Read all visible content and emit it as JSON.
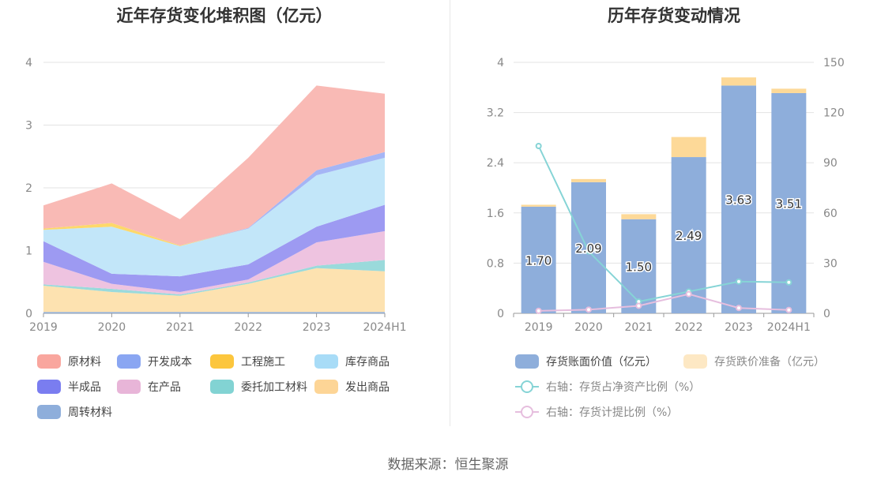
{
  "source_text": "数据来源：恒生聚源",
  "chart_data": [
    {
      "type": "area",
      "title": "近年存货变化堆积图（亿元）",
      "x": [
        "2019",
        "2020",
        "2021",
        "2022",
        "2023",
        "2024H1"
      ],
      "yticks": [
        "0",
        "1",
        "2",
        "3",
        "4"
      ],
      "ylim": [
        0,
        4
      ],
      "grid": true,
      "legend_position": "bottom",
      "series": [
        {
          "name": "周转材料",
          "color": "#8eaedb",
          "values": [
            0.02,
            0.02,
            0.02,
            0.02,
            0.02,
            0.02
          ]
        },
        {
          "name": "发出商品",
          "color": "#fde2b0",
          "values": [
            0.42,
            0.32,
            0.26,
            0.45,
            0.7,
            0.65
          ]
        },
        {
          "name": "委托加工材料",
          "color": "#9adadb",
          "values": [
            0.02,
            0.05,
            0.02,
            0.02,
            0.04,
            0.18
          ]
        },
        {
          "name": "在产品",
          "color": "#eec3e0",
          "values": [
            0.36,
            0.08,
            0.04,
            0.05,
            0.37,
            0.46
          ]
        },
        {
          "name": "半成品",
          "color": "#9d9af2",
          "values": [
            0.33,
            0.16,
            0.25,
            0.24,
            0.25,
            0.42
          ]
        },
        {
          "name": "库存商品",
          "color": "#c2e6f9",
          "values": [
            0.18,
            0.75,
            0.48,
            0.57,
            0.82,
            0.75
          ]
        },
        {
          "name": "工程施工",
          "color": "#fdd86a",
          "values": [
            0.02,
            0.06,
            0.01,
            0.0,
            0.0,
            0.0
          ]
        },
        {
          "name": "开发成本",
          "color": "#a5b5f5",
          "values": [
            0.0,
            0.0,
            0.0,
            0.01,
            0.08,
            0.09
          ]
        },
        {
          "name": "原材料",
          "color": "#f9bab5",
          "values": [
            0.37,
            0.63,
            0.42,
            1.12,
            1.35,
            0.93
          ]
        }
      ],
      "legend": [
        {
          "name": "原材料",
          "color": "#f9a69e"
        },
        {
          "name": "开发成本",
          "color": "#8aa6f2"
        },
        {
          "name": "工程施工",
          "color": "#fcc63d"
        },
        {
          "name": "库存商品",
          "color": "#a8dcf7"
        },
        {
          "name": "半成品",
          "color": "#7a7df0"
        },
        {
          "name": "在产品",
          "color": "#e8b5d8"
        },
        {
          "name": "委托加工材料",
          "color": "#82d3d3"
        },
        {
          "name": "发出商品",
          "color": "#fdd596"
        },
        {
          "name": "周转材料",
          "color": "#8eaedb"
        }
      ]
    },
    {
      "type": "bar",
      "title": "历年存货变动情况",
      "categories": [
        "2019",
        "2020",
        "2021",
        "2022",
        "2023",
        "2024H1"
      ],
      "yticks_left": [
        "0",
        "0.8",
        "1.6",
        "2.4",
        "3.2",
        "4"
      ],
      "yticks_right": [
        "0",
        "30",
        "60",
        "90",
        "120",
        "150"
      ],
      "ylim_left": [
        0,
        4
      ],
      "ylim_right": [
        0,
        150
      ],
      "grid": true,
      "legend_position": "bottom",
      "bar_series": [
        {
          "name": "存货账面价值（亿元）",
          "color": "#8eaedb",
          "values": [
            1.7,
            2.09,
            1.5,
            2.49,
            3.63,
            3.51
          ],
          "labels": [
            "1.70",
            "2.09",
            "1.50",
            "2.49",
            "3.63",
            "3.51"
          ]
        },
        {
          "name": "存货跌价准备（亿元）",
          "color": "#fdd998",
          "values": [
            0.03,
            0.05,
            0.08,
            0.32,
            0.13,
            0.07
          ]
        }
      ],
      "line_series": [
        {
          "name": "右轴：存货占净资产比例（%）",
          "color": "#86d4d6",
          "values": [
            100,
            37,
            7,
            13,
            19,
            18.5
          ]
        },
        {
          "name": "右轴：存货计提比例（%）",
          "color": "#e6bede",
          "values": [
            1.5,
            2.2,
            4.5,
            11.5,
            3.2,
            2
          ]
        }
      ]
    }
  ]
}
